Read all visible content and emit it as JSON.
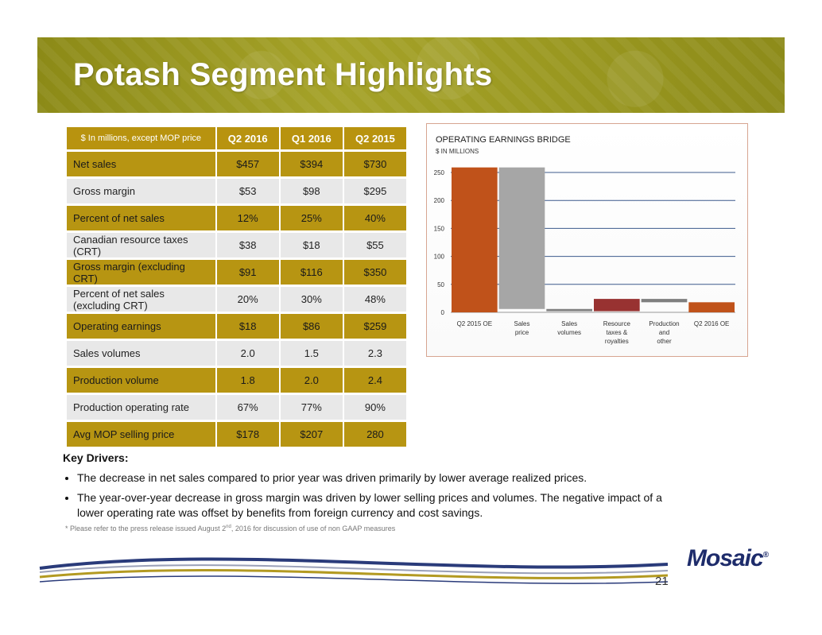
{
  "slide": {
    "title": "Potash Segment Highlights",
    "page_number": "21",
    "logo_text": "Mosaic",
    "logo_mark": "®"
  },
  "table": {
    "header": [
      "$ In millions, except MOP price",
      "Q2 2016",
      "Q1 2016",
      "Q2 2015"
    ],
    "rows": [
      {
        "label": "Net sales",
        "q2_2016": "$457",
        "q1_2016": "$394",
        "q2_2015": "$730",
        "style": "gold"
      },
      {
        "label": "Gross margin",
        "q2_2016": "$53",
        "q1_2016": "$98",
        "q2_2015": "$295",
        "style": "grey"
      },
      {
        "label": "Percent of net sales",
        "q2_2016": "12%",
        "q1_2016": "25%",
        "q2_2015": "40%",
        "style": "gold"
      },
      {
        "label": "Canadian resource taxes (CRT)",
        "q2_2016": "$38",
        "q1_2016": "$18",
        "q2_2015": "$55",
        "style": "grey"
      },
      {
        "label": "Gross margin (excluding CRT)",
        "q2_2016": "$91",
        "q1_2016": "$116",
        "q2_2015": "$350",
        "style": "gold"
      },
      {
        "label": "Percent of net sales (excluding CRT)",
        "q2_2016": "20%",
        "q1_2016": "30%",
        "q2_2015": "48%",
        "style": "grey"
      },
      {
        "label": "Operating earnings",
        "q2_2016": "$18",
        "q1_2016": "$86",
        "q2_2015": "$259",
        "style": "gold"
      },
      {
        "label": "Sales volumes",
        "q2_2016": "2.0",
        "q1_2016": "1.5",
        "q2_2015": "2.3",
        "style": "grey"
      },
      {
        "label": "Production volume",
        "q2_2016": "1.8",
        "q1_2016": "2.0",
        "q2_2015": "2.4",
        "style": "gold"
      },
      {
        "label": "Production operating rate",
        "q2_2016": "67%",
        "q1_2016": "77%",
        "q2_2015": "90%",
        "style": "grey"
      },
      {
        "label": "Avg MOP selling price",
        "q2_2016": "$178",
        "q1_2016": "$207",
        "q2_2015": "280",
        "style": "gold"
      }
    ]
  },
  "key_drivers": {
    "title": "Key  Drivers:",
    "bullets": [
      "The decrease in net  sales compared to prior year was driven primarily by lower average realized prices.",
      "The year-over-year decrease in gross margin was driven by lower selling prices and volumes.  The negative impact of a lower operating rate was offset by benefits from foreign currency and cost savings."
    ]
  },
  "footnote": {
    "prefix": "* Please refer to the press release issued August 2",
    "superscript": "nd",
    "suffix": ", 2016 for discussion of use of non GAAP measures"
  },
  "chart_data": {
    "type": "bar",
    "subtype": "waterfall",
    "title": "OPERATING EARNINGS BRIDGE",
    "subtitle": "$ IN MILLIONS",
    "categories": [
      [
        "Q2 2015 OE"
      ],
      [
        "Sales",
        "price"
      ],
      [
        "Sales",
        "volumes"
      ],
      [
        "Resource",
        "taxes &",
        "royalties"
      ],
      [
        "Production",
        "and",
        "other"
      ],
      [
        "Q2 2016 OE"
      ]
    ],
    "bars": [
      {
        "start": 0,
        "end": 259,
        "color": "#c0521a"
      },
      {
        "start": 259,
        "end": 6,
        "color": "#a6a6a6"
      },
      {
        "start": 6,
        "end": 2,
        "color": "#808080"
      },
      {
        "start": 2,
        "end": 24,
        "color": "#983231"
      },
      {
        "start": 24,
        "end": 18,
        "color": "#7f7f7f"
      },
      {
        "start": 0,
        "end": 18,
        "color": "#c0521a"
      }
    ],
    "ylim": [
      0,
      250
    ],
    "yticks": [
      0,
      50,
      100,
      150,
      200,
      250
    ],
    "gridline_color": "#3c5a8c"
  }
}
